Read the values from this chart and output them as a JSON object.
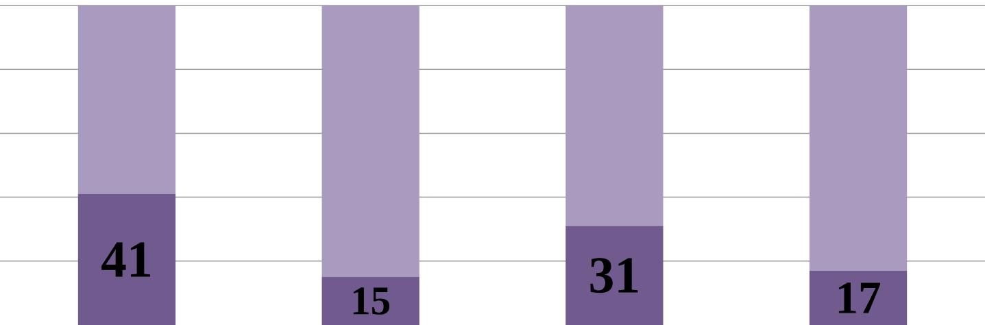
{
  "chart_data": {
    "type": "bar",
    "stacked": true,
    "categories": [
      null,
      null,
      null,
      null
    ],
    "series": [
      {
        "color": "#715a8e",
        "values": [
          41,
          15,
          31,
          17
        ],
        "value_labels": [
          "41",
          "15",
          "31",
          "17"
        ]
      },
      {
        "color": "#a99bbf",
        "values": [
          59,
          85,
          69,
          83
        ]
      }
    ],
    "ylim": [
      0,
      100
    ],
    "yticks": [
      {
        "value": 20,
        "label": null
      },
      {
        "value": 40,
        "label": null
      },
      {
        "value": 60,
        "label": null
      },
      {
        "value": 80,
        "label": null
      },
      {
        "value": 100,
        "label": null
      }
    ],
    "grid": "y"
  }
}
